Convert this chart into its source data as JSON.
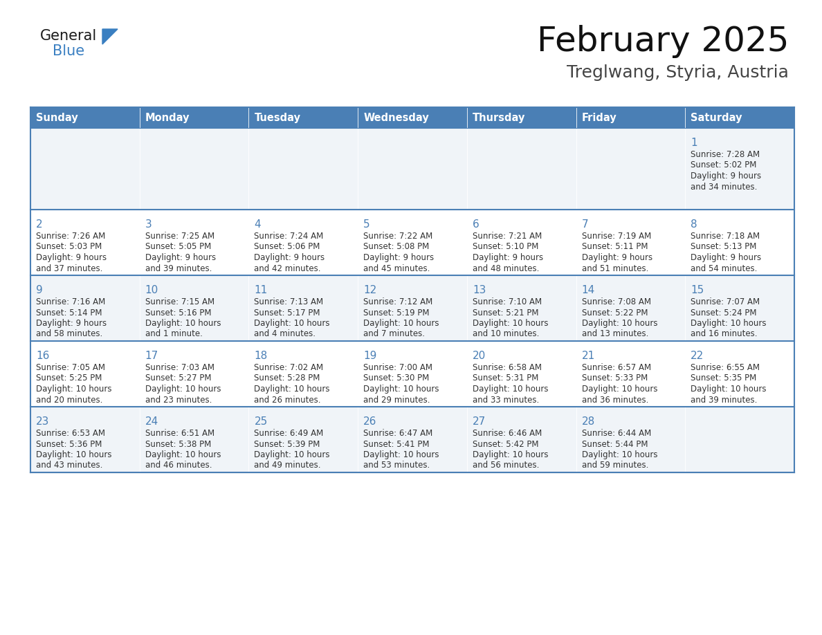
{
  "title": "February 2025",
  "subtitle": "Treglwang, Styria, Austria",
  "days_of_week": [
    "Sunday",
    "Monday",
    "Tuesday",
    "Wednesday",
    "Thursday",
    "Friday",
    "Saturday"
  ],
  "header_bg": "#4a7fb5",
  "header_text": "#FFFFFF",
  "row_bg_even": "#f0f4f8",
  "row_bg_odd": "#FFFFFF",
  "border_color": "#4a7fb5",
  "day_num_color": "#4a7fb5",
  "text_color": "#333333",
  "logo_general_color": "#1a1a1a",
  "logo_blue_color": "#3a7fc1",
  "calendar_data": [
    [
      null,
      null,
      null,
      null,
      null,
      null,
      {
        "day": 1,
        "sunrise": "7:28 AM",
        "sunset": "5:02 PM",
        "daylight": "9 hours and 34 minutes."
      }
    ],
    [
      {
        "day": 2,
        "sunrise": "7:26 AM",
        "sunset": "5:03 PM",
        "daylight": "9 hours and 37 minutes."
      },
      {
        "day": 3,
        "sunrise": "7:25 AM",
        "sunset": "5:05 PM",
        "daylight": "9 hours and 39 minutes."
      },
      {
        "day": 4,
        "sunrise": "7:24 AM",
        "sunset": "5:06 PM",
        "daylight": "9 hours and 42 minutes."
      },
      {
        "day": 5,
        "sunrise": "7:22 AM",
        "sunset": "5:08 PM",
        "daylight": "9 hours and 45 minutes."
      },
      {
        "day": 6,
        "sunrise": "7:21 AM",
        "sunset": "5:10 PM",
        "daylight": "9 hours and 48 minutes."
      },
      {
        "day": 7,
        "sunrise": "7:19 AM",
        "sunset": "5:11 PM",
        "daylight": "9 hours and 51 minutes."
      },
      {
        "day": 8,
        "sunrise": "7:18 AM",
        "sunset": "5:13 PM",
        "daylight": "9 hours and 54 minutes."
      }
    ],
    [
      {
        "day": 9,
        "sunrise": "7:16 AM",
        "sunset": "5:14 PM",
        "daylight": "9 hours and 58 minutes."
      },
      {
        "day": 10,
        "sunrise": "7:15 AM",
        "sunset": "5:16 PM",
        "daylight": "10 hours and 1 minute."
      },
      {
        "day": 11,
        "sunrise": "7:13 AM",
        "sunset": "5:17 PM",
        "daylight": "10 hours and 4 minutes."
      },
      {
        "day": 12,
        "sunrise": "7:12 AM",
        "sunset": "5:19 PM",
        "daylight": "10 hours and 7 minutes."
      },
      {
        "day": 13,
        "sunrise": "7:10 AM",
        "sunset": "5:21 PM",
        "daylight": "10 hours and 10 minutes."
      },
      {
        "day": 14,
        "sunrise": "7:08 AM",
        "sunset": "5:22 PM",
        "daylight": "10 hours and 13 minutes."
      },
      {
        "day": 15,
        "sunrise": "7:07 AM",
        "sunset": "5:24 PM",
        "daylight": "10 hours and 16 minutes."
      }
    ],
    [
      {
        "day": 16,
        "sunrise": "7:05 AM",
        "sunset": "5:25 PM",
        "daylight": "10 hours and 20 minutes."
      },
      {
        "day": 17,
        "sunrise": "7:03 AM",
        "sunset": "5:27 PM",
        "daylight": "10 hours and 23 minutes."
      },
      {
        "day": 18,
        "sunrise": "7:02 AM",
        "sunset": "5:28 PM",
        "daylight": "10 hours and 26 minutes."
      },
      {
        "day": 19,
        "sunrise": "7:00 AM",
        "sunset": "5:30 PM",
        "daylight": "10 hours and 29 minutes."
      },
      {
        "day": 20,
        "sunrise": "6:58 AM",
        "sunset": "5:31 PM",
        "daylight": "10 hours and 33 minutes."
      },
      {
        "day": 21,
        "sunrise": "6:57 AM",
        "sunset": "5:33 PM",
        "daylight": "10 hours and 36 minutes."
      },
      {
        "day": 22,
        "sunrise": "6:55 AM",
        "sunset": "5:35 PM",
        "daylight": "10 hours and 39 minutes."
      }
    ],
    [
      {
        "day": 23,
        "sunrise": "6:53 AM",
        "sunset": "5:36 PM",
        "daylight": "10 hours and 43 minutes."
      },
      {
        "day": 24,
        "sunrise": "6:51 AM",
        "sunset": "5:38 PM",
        "daylight": "10 hours and 46 minutes."
      },
      {
        "day": 25,
        "sunrise": "6:49 AM",
        "sunset": "5:39 PM",
        "daylight": "10 hours and 49 minutes."
      },
      {
        "day": 26,
        "sunrise": "6:47 AM",
        "sunset": "5:41 PM",
        "daylight": "10 hours and 53 minutes."
      },
      {
        "day": 27,
        "sunrise": "6:46 AM",
        "sunset": "5:42 PM",
        "daylight": "10 hours and 56 minutes."
      },
      {
        "day": 28,
        "sunrise": "6:44 AM",
        "sunset": "5:44 PM",
        "daylight": "10 hours and 59 minutes."
      },
      null
    ]
  ]
}
